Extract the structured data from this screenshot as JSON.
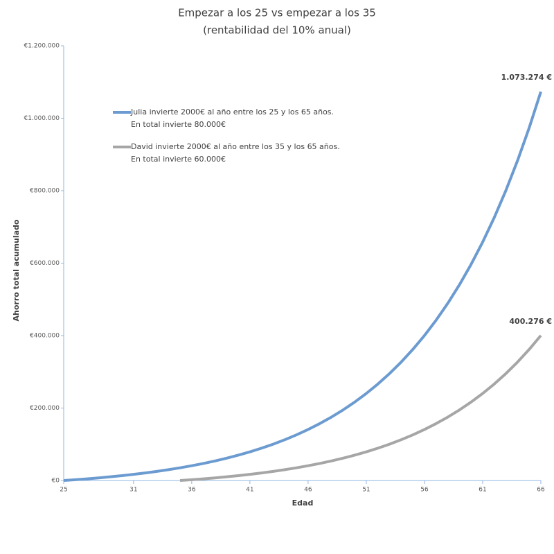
{
  "chart_data": {
    "type": "line",
    "title": "Empezar a los 25 vs empezar a los 35",
    "subtitle": "(rentabilidad del 10% anual)",
    "x_label": "Edad",
    "y_label": "Ahorro total acumulado",
    "x": [
      25,
      26,
      27,
      28,
      29,
      30,
      31,
      32,
      33,
      34,
      35,
      36,
      37,
      38,
      39,
      40,
      41,
      42,
      43,
      44,
      45,
      46,
      47,
      48,
      49,
      50,
      51,
      52,
      53,
      54,
      55,
      56,
      57,
      58,
      59,
      60,
      61,
      62,
      63,
      64,
      65,
      66
    ],
    "xlim": [
      25,
      66
    ],
    "xticks": [
      25,
      31,
      36,
      41,
      46,
      51,
      56,
      61,
      66
    ],
    "ylim": [
      0,
      1200000
    ],
    "yticks": [
      {
        "value": 0,
        "label": "€0"
      },
      {
        "value": 200000,
        "label": "€200.000"
      },
      {
        "value": 400000,
        "label": "€400.000"
      },
      {
        "value": 600000,
        "label": "€600.000"
      },
      {
        "value": 800000,
        "label": "€800.000"
      },
      {
        "value": 1000000,
        "label": "€1.000.000"
      },
      {
        "value": 1200000,
        "label": "€1.200.000"
      }
    ],
    "series": [
      {
        "name": "Julia invierte 2000€ al año entre los 25 y los 65 años.",
        "legend_detail": "En total invierte 80.000€",
        "color": "#6b9bd0",
        "values": [
          0,
          2200,
          4620,
          7282,
          10210,
          13431,
          16974,
          20872,
          25159,
          29875,
          35062,
          40769,
          47045,
          53950,
          61545,
          69899,
          79089,
          89198,
          100318,
          112550,
          126005,
          140806,
          157086,
          174995,
          194694,
          216364,
          240200,
          266420,
          295262,
          326988,
          361887,
          400276,
          442503,
          488953,
          540049,
          596254,
          658079,
          726087,
          800896,
          883185,
          973704,
          1073274
        ],
        "value_labels": [
          null,
          null,
          null,
          null,
          null,
          null,
          null,
          null,
          null,
          null,
          null,
          null,
          null,
          null,
          null,
          null,
          null,
          null,
          null,
          null,
          null,
          null,
          null,
          null,
          null,
          null,
          null,
          null,
          null,
          null,
          null,
          null,
          null,
          null,
          null,
          null,
          null,
          null,
          null,
          null,
          null,
          "1.073.274 €"
        ]
      },
      {
        "name": "David invierte 2000€ al año entre los 35 y los 65 años.",
        "legend_detail": "En total invierte 60.000€",
        "color": "#a6a6a6",
        "values": [
          null,
          null,
          null,
          null,
          null,
          null,
          null,
          null,
          null,
          null,
          0,
          2200,
          4620,
          7282,
          10210,
          13431,
          16974,
          20872,
          25159,
          29875,
          35062,
          40769,
          47045,
          53950,
          61545,
          69899,
          79089,
          89198,
          100318,
          112550,
          126005,
          140806,
          157086,
          174995,
          194694,
          216364,
          240200,
          266420,
          295262,
          326988,
          361887,
          400276
        ],
        "value_labels": [
          null,
          null,
          null,
          null,
          null,
          null,
          null,
          null,
          null,
          null,
          null,
          null,
          null,
          null,
          null,
          null,
          null,
          null,
          null,
          null,
          null,
          null,
          null,
          null,
          null,
          null,
          null,
          null,
          null,
          null,
          null,
          null,
          null,
          null,
          null,
          null,
          null,
          null,
          null,
          null,
          null,
          "400.276 €"
        ]
      }
    ]
  }
}
